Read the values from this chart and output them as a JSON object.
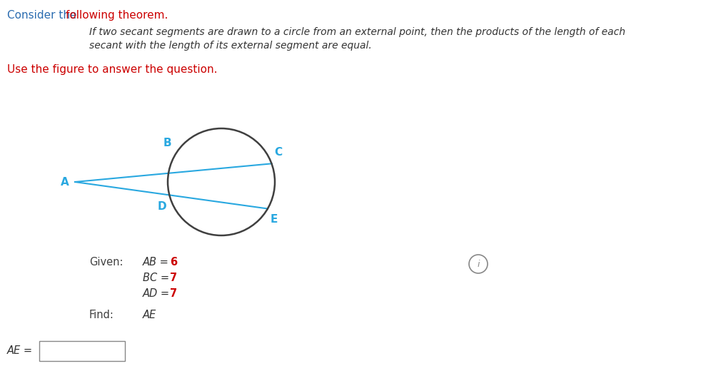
{
  "title_part1": "Consider the ",
  "title_part2": "following theorem.",
  "title_color1": "#2b6cb0",
  "title_color2": "#cc0000",
  "theorem_line1": "If two secant segments are drawn to a circle from an external point, then the products of the length of each",
  "theorem_line2": "secant with the length of its external segment are equal.",
  "use_figure_text": "Use the figure to answer the question.",
  "use_figure_color": "#cc0000",
  "line_color": "#29a8e0",
  "circle_color": "#404040",
  "label_color": "#29a8e0",
  "given_label_color": "#404040",
  "given_value_color": "#cc0000",
  "background_color": "#ffffff",
  "given_AB": "6",
  "given_BC": "7",
  "given_AD": "7",
  "find_var": "AE",
  "answer_var": "AE",
  "info_color": "#888888"
}
